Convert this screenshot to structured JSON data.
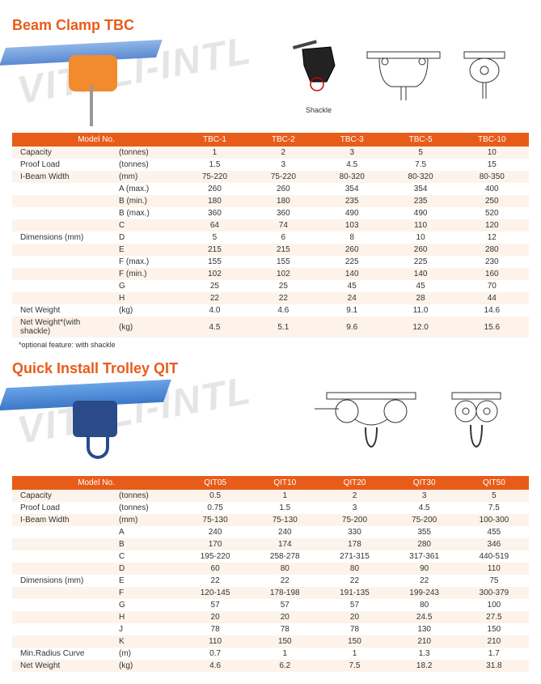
{
  "watermark_text": "VITALI-INTL",
  "tbc": {
    "title": "Beam Clamp TBC",
    "shackle_label": "Shackle",
    "footnote": "*optional feature: with shackle",
    "header_col1": "Model No.",
    "models": [
      "TBC-1",
      "TBC-2",
      "TBC-3",
      "TBC-5",
      "TBC-10"
    ],
    "rows": [
      {
        "label": "Capacity",
        "unit": "(tonnes)",
        "v": [
          "1",
          "2",
          "3",
          "5",
          "10"
        ]
      },
      {
        "label": "Proof Load",
        "unit": "(tonnes)",
        "v": [
          "1.5",
          "3",
          "4.5",
          "7.5",
          "15"
        ]
      },
      {
        "label": "I-Beam Width",
        "unit": "(mm)",
        "v": [
          "75-220",
          "75-220",
          "80-320",
          "80-320",
          "80-350"
        ]
      },
      {
        "label": "",
        "unit": "A (max.)",
        "v": [
          "260",
          "260",
          "354",
          "354",
          "400"
        ]
      },
      {
        "label": "",
        "unit": "B (min.)",
        "v": [
          "180",
          "180",
          "235",
          "235",
          "250"
        ]
      },
      {
        "label": "",
        "unit": "B (max.)",
        "v": [
          "360",
          "360",
          "490",
          "490",
          "520"
        ]
      },
      {
        "label": "",
        "unit": "C",
        "v": [
          "64",
          "74",
          "103",
          "110",
          "120"
        ]
      },
      {
        "label": "Dimensions (mm)",
        "unit": "D",
        "v": [
          "5",
          "6",
          "8",
          "10",
          "12"
        ]
      },
      {
        "label": "",
        "unit": "E",
        "v": [
          "215",
          "215",
          "260",
          "260",
          "280"
        ]
      },
      {
        "label": "",
        "unit": "F (max.)",
        "v": [
          "155",
          "155",
          "225",
          "225",
          "230"
        ]
      },
      {
        "label": "",
        "unit": "F (min.)",
        "v": [
          "102",
          "102",
          "140",
          "140",
          "160"
        ]
      },
      {
        "label": "",
        "unit": "G",
        "v": [
          "25",
          "25",
          "45",
          "45",
          "70"
        ]
      },
      {
        "label": "",
        "unit": "H",
        "v": [
          "22",
          "22",
          "24",
          "28",
          "44"
        ]
      },
      {
        "label": "Net Weight",
        "unit": "(kg)",
        "v": [
          "4.0",
          "4.6",
          "9.1",
          "11.0",
          "14.6"
        ]
      },
      {
        "label": "Net Weight*(with shackle)",
        "unit": "(kg)",
        "v": [
          "4.5",
          "5.1",
          "9.6",
          "12.0",
          "15.6"
        ]
      }
    ]
  },
  "qit": {
    "title": "Quick Install Trolley QIT",
    "header_col1": "Model No.",
    "models": [
      "QIT05",
      "QIT10",
      "QIT20",
      "QIT30",
      "QIT50"
    ],
    "rows": [
      {
        "label": "Capacity",
        "unit": "(tonnes)",
        "v": [
          "0.5",
          "1",
          "2",
          "3",
          "5"
        ]
      },
      {
        "label": "Proof Load",
        "unit": "(tonnes)",
        "v": [
          "0.75",
          "1.5",
          "3",
          "4.5",
          "7.5"
        ]
      },
      {
        "label": "I-Beam Width",
        "unit": "(mm)",
        "v": [
          "75-130",
          "75-130",
          "75-200",
          "75-200",
          "100-300"
        ]
      },
      {
        "label": "",
        "unit": "A",
        "v": [
          "240",
          "240",
          "330",
          "355",
          "455"
        ]
      },
      {
        "label": "",
        "unit": "B",
        "v": [
          "170",
          "174",
          "178",
          "280",
          "346"
        ]
      },
      {
        "label": "",
        "unit": "C",
        "v": [
          "195-220",
          "258-278",
          "271-315",
          "317-361",
          "440-519"
        ]
      },
      {
        "label": "",
        "unit": "D",
        "v": [
          "60",
          "80",
          "80",
          "90",
          "110"
        ]
      },
      {
        "label": "Dimensions (mm)",
        "unit": "E",
        "v": [
          "22",
          "22",
          "22",
          "22",
          "75"
        ]
      },
      {
        "label": "",
        "unit": "F",
        "v": [
          "120-145",
          "178-198",
          "191-135",
          "199-243",
          "300-379"
        ]
      },
      {
        "label": "",
        "unit": "G",
        "v": [
          "57",
          "57",
          "57",
          "80",
          "100"
        ]
      },
      {
        "label": "",
        "unit": "H",
        "v": [
          "20",
          "20",
          "20",
          "24.5",
          "27.5"
        ]
      },
      {
        "label": "",
        "unit": "J",
        "v": [
          "78",
          "78",
          "78",
          "130",
          "150"
        ]
      },
      {
        "label": "",
        "unit": "K",
        "v": [
          "110",
          "150",
          "150",
          "210",
          "210"
        ]
      },
      {
        "label": "Min.Radius Curve",
        "unit": "(m)",
        "v": [
          "0.7",
          "1",
          "1",
          "1.3",
          "1.7"
        ]
      },
      {
        "label": "Net Weight",
        "unit": "(kg)",
        "v": [
          "4.6",
          "6.2",
          "7.5",
          "18.2",
          "31.8"
        ]
      }
    ]
  },
  "colors": {
    "accent": "#e85c1a",
    "row_odd": "#fdf3ea",
    "row_even": "#ffffff"
  }
}
